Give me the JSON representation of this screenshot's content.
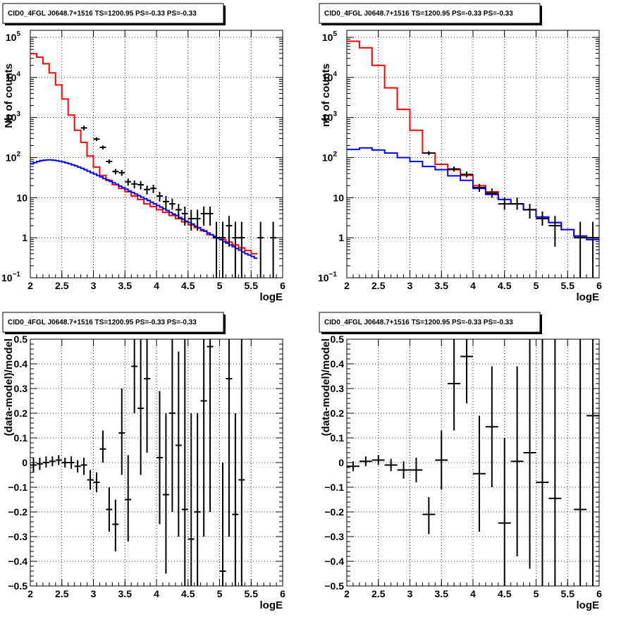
{
  "chart_data": [
    {
      "type": "line",
      "title": "CID0_4FGL J0648.7+1516 TS=1200.95 PS=-0.33 PS=-0.33",
      "xlabel": "logE",
      "ylabel": "Nb of counts",
      "xlim": [
        2,
        6
      ],
      "ylim": [
        0.1,
        150000
      ],
      "yscale": "log",
      "grid": true,
      "xticks": [
        "2",
        "2.5",
        "3",
        "3.5",
        "4",
        "4.5",
        "5",
        "5.5",
        "6"
      ],
      "yticks": [
        {
          "v": 0.1,
          "base": "10",
          "exp": "−1"
        },
        {
          "v": 1,
          "label": "1"
        },
        {
          "v": 10,
          "label": "10"
        },
        {
          "v": 100,
          "base": "10",
          "exp": "2"
        },
        {
          "v": 1000,
          "base": "10",
          "exp": "3"
        },
        {
          "v": 10000,
          "base": "10",
          "exp": "4"
        },
        {
          "v": 100000,
          "base": "10",
          "exp": "5"
        }
      ],
      "series": [
        {
          "color": "#ff0000",
          "kind": "step",
          "start": 2.0,
          "step": 0.1,
          "values": [
            39000,
            32000,
            22000,
            13000,
            6500,
            2900,
            1150,
            480,
            240,
            110,
            58,
            36,
            27,
            21,
            17,
            14,
            11,
            9,
            7,
            6,
            5,
            4.3,
            3.6,
            3.0,
            2.5,
            2.1,
            1.8,
            1.5,
            1.2,
            1.0,
            0.9,
            0.78,
            0.66,
            0.56,
            0.48,
            0.4
          ]
        },
        {
          "color": "#0000ff",
          "kind": "step",
          "start": 2.0,
          "step": 0.05,
          "values": [
            70,
            75,
            80,
            84,
            86,
            88,
            88,
            86,
            84,
            81,
            78,
            74,
            70,
            66,
            62,
            58,
            54,
            50,
            46,
            42,
            39,
            36,
            33,
            30,
            28,
            25.5,
            23.5,
            21.5,
            19.5,
            17.8,
            16.3,
            14.8,
            13.5,
            12.3,
            11.2,
            10.2,
            9.3,
            8.5,
            7.7,
            7.0,
            6.4,
            5.8,
            5.3,
            4.8,
            4.3,
            3.9,
            3.6,
            3.2,
            2.9,
            2.6,
            2.4,
            2.2,
            1.95,
            1.77,
            1.6,
            1.45,
            1.31,
            1.19,
            1.08,
            0.98,
            0.89,
            0.8,
            0.73,
            0.66,
            0.6,
            0.54,
            0.49,
            0.44,
            0.4,
            0.37,
            0.34,
            0.31
          ]
        }
      ],
      "points": {
        "halfwidth": 0.05,
        "x": [
          2.85,
          3.05,
          3.15,
          3.25,
          3.35,
          3.45,
          3.55,
          3.65,
          3.75,
          3.85,
          3.95,
          4.05,
          4.15,
          4.25,
          4.35,
          4.45,
          4.55,
          4.65,
          4.75,
          4.85,
          4.95,
          5.05,
          5.15,
          5.25,
          5.35,
          5.65,
          5.85
        ],
        "y": [
          550,
          290,
          180,
          80,
          45,
          42,
          25,
          22,
          21,
          16,
          17,
          11,
          8,
          7,
          5,
          4,
          3,
          3,
          4,
          4,
          1,
          1,
          2,
          1,
          1,
          1,
          1
        ],
        "ylo": [
          480,
          260,
          160,
          70,
          38,
          35,
          20,
          17,
          16,
          12,
          13,
          8,
          5,
          5,
          3,
          2,
          1.5,
          1.5,
          2,
          2,
          0.1,
          0.1,
          0.6,
          0.1,
          0.1,
          0.1,
          0.1
        ],
        "yhi": [
          620,
          320,
          200,
          90,
          52,
          49,
          30,
          27,
          26,
          20,
          21,
          14,
          11,
          9.5,
          7,
          6,
          5,
          5,
          6,
          6,
          2.5,
          2.5,
          3.5,
          2.5,
          2.5,
          2.5,
          2.5
        ]
      }
    },
    {
      "type": "line",
      "title": "CID0_4FGL J0648.7+1516 TS=1200.95 PS=-0.33 PS=-0.33",
      "xlabel": "logE",
      "ylabel": "nb of counts",
      "xlim": [
        2,
        6
      ],
      "ylim": [
        0.1,
        150000
      ],
      "yscale": "log",
      "grid": true,
      "xticks": [
        "2",
        "2.5",
        "3",
        "3.5",
        "4",
        "4.5",
        "5",
        "5.5",
        "6"
      ],
      "yticks": [
        {
          "v": 0.1,
          "base": "10",
          "exp": "−1"
        },
        {
          "v": 1,
          "label": "1"
        },
        {
          "v": 10,
          "label": "10"
        },
        {
          "v": 100,
          "base": "10",
          "exp": "2"
        },
        {
          "v": 1000,
          "base": "10",
          "exp": "3"
        },
        {
          "v": 10000,
          "base": "10",
          "exp": "4"
        },
        {
          "v": 100000,
          "base": "10",
          "exp": "5"
        }
      ],
      "series": [
        {
          "color": "#ff0000",
          "kind": "step",
          "start": 2.0,
          "step": 0.2,
          "values": [
            80000,
            55000,
            20000,
            5500,
            1600,
            480,
            130,
            68,
            50,
            36,
            20,
            14,
            9,
            7,
            5,
            3.3,
            2.4,
            1.6,
            1.1,
            0.9
          ]
        },
        {
          "color": "#0000ff",
          "kind": "step",
          "start": 2.0,
          "step": 0.2,
          "values": [
            160,
            175,
            155,
            130,
            100,
            80,
            60,
            50,
            35,
            27,
            17,
            12,
            9,
            7,
            5,
            3.3,
            2.4,
            1.6,
            1.1,
            0.9
          ]
        }
      ],
      "points": {
        "halfwidth": 0.1,
        "x": [
          3.3,
          3.7,
          3.9,
          4.1,
          4.3,
          4.5,
          4.7,
          4.9,
          5.1,
          5.3,
          5.7,
          5.9
        ],
        "y": [
          130,
          52,
          38,
          18,
          13,
          7,
          7,
          5,
          3,
          2,
          1,
          1
        ],
        "ylo": [
          115,
          45,
          32,
          14,
          10,
          5,
          5,
          3,
          2,
          0.6,
          0.1,
          0.1
        ],
        "yhi": [
          145,
          60,
          45,
          22,
          17,
          10,
          10,
          7,
          4.5,
          3.5,
          2.5,
          2.5
        ]
      }
    },
    {
      "type": "scatter",
      "title": "CID0_4FGL J0648.7+1516 TS=1200.95 PS=-0.33 PS=-0.33",
      "xlabel": "logE",
      "ylabel": "(data-model)/model",
      "xlim": [
        2,
        6
      ],
      "ylim": [
        -0.5,
        0.5
      ],
      "yscale": "linear",
      "grid": true,
      "xticks": [
        "2",
        "2.5",
        "3",
        "3.5",
        "4",
        "4.5",
        "5",
        "5.5",
        "6"
      ],
      "yticks": [
        {
          "v": -0.5,
          "label": "−0.5"
        },
        {
          "v": -0.4,
          "label": "−0.4"
        },
        {
          "v": -0.3,
          "label": "−0.3"
        },
        {
          "v": -0.2,
          "label": "−0.2"
        },
        {
          "v": -0.1,
          "label": "−0.1"
        },
        {
          "v": 0,
          "label": "0"
        },
        {
          "v": 0.1,
          "label": "0.1"
        },
        {
          "v": 0.2,
          "label": "0.2"
        },
        {
          "v": 0.3,
          "label": "0.3"
        },
        {
          "v": 0.4,
          "label": "0.4"
        },
        {
          "v": 0.5,
          "label": "0.5"
        }
      ],
      "series": [],
      "points": {
        "halfwidth": 0.05,
        "x": [
          2.05,
          2.15,
          2.25,
          2.35,
          2.45,
          2.55,
          2.65,
          2.75,
          2.85,
          2.95,
          3.05,
          3.15,
          3.25,
          3.35,
          3.45,
          3.55,
          3.65,
          3.75,
          3.85,
          4.05,
          4.15,
          4.25,
          4.35,
          4.45,
          4.55,
          4.65,
          4.75,
          4.85,
          5.05,
          5.15,
          5.25,
          5.35
        ],
        "y": [
          -0.01,
          -0.005,
          0.0,
          0.005,
          0.01,
          0.0,
          0.0,
          -0.015,
          -0.01,
          -0.07,
          -0.08,
          0.055,
          -0.19,
          -0.25,
          0.12,
          -0.15,
          0.39,
          0.22,
          0.34,
          0.02,
          -0.13,
          0.2,
          0.07,
          -0.19,
          -0.31,
          -0.2,
          0.25,
          0.47,
          -0.44,
          0.34,
          -0.21,
          -0.07
        ],
        "ylo": [
          -0.04,
          -0.03,
          -0.02,
          -0.015,
          -0.01,
          -0.02,
          -0.025,
          -0.04,
          -0.05,
          -0.11,
          -0.12,
          0.0,
          -0.28,
          -0.36,
          -0.05,
          -0.32,
          0.2,
          -0.05,
          0.04,
          -0.25,
          -0.45,
          -0.2,
          -0.3,
          -0.6,
          -0.6,
          -0.6,
          -0.3,
          -0.2,
          -0.6,
          -0.3,
          -0.6,
          -0.6
        ],
        "yhi": [
          0.02,
          0.02,
          0.025,
          0.025,
          0.03,
          0.02,
          0.025,
          0.01,
          0.02,
          -0.03,
          -0.04,
          0.13,
          -0.1,
          -0.15,
          0.3,
          0.03,
          0.6,
          0.5,
          0.6,
          0.29,
          0.2,
          0.6,
          0.45,
          0.6,
          0.2,
          0.2,
          0.6,
          0.6,
          0.0,
          0.6,
          0.2,
          0.6
        ]
      }
    },
    {
      "type": "scatter",
      "title": "CID0_4FGL J0648.7+1516 TS=1200.95 PS=-0.33 PS=-0.33",
      "xlabel": "logE",
      "ylabel": "(data-model)/model",
      "xlim": [
        2,
        6
      ],
      "ylim": [
        -0.5,
        0.5
      ],
      "yscale": "linear",
      "grid": true,
      "xticks": [
        "2",
        "2.5",
        "3",
        "3.5",
        "4",
        "4.5",
        "5",
        "5.5",
        "6"
      ],
      "yticks": [
        {
          "v": -0.5,
          "label": "−0.5"
        },
        {
          "v": -0.4,
          "label": "−0.4"
        },
        {
          "v": -0.3,
          "label": "−0.3"
        },
        {
          "v": -0.2,
          "label": "−0.2"
        },
        {
          "v": -0.1,
          "label": "−0.1"
        },
        {
          "v": 0,
          "label": "0"
        },
        {
          "v": 0.1,
          "label": "0.1"
        },
        {
          "v": 0.2,
          "label": "0.2"
        },
        {
          "v": 0.3,
          "label": "0.3"
        },
        {
          "v": 0.4,
          "label": "0.4"
        },
        {
          "v": 0.5,
          "label": "0.5"
        }
      ],
      "series": [],
      "points": {
        "halfwidth": 0.1,
        "x": [
          2.1,
          2.3,
          2.5,
          2.7,
          2.9,
          3.1,
          3.3,
          3.5,
          3.7,
          3.9,
          4.1,
          4.3,
          4.5,
          4.7,
          4.9,
          5.1,
          5.3,
          5.7,
          5.9
        ],
        "y": [
          -0.015,
          0.005,
          0.01,
          -0.01,
          -0.03,
          -0.03,
          -0.21,
          0.01,
          0.32,
          0.43,
          -0.045,
          0.145,
          -0.245,
          0.005,
          0.04,
          -0.08,
          -0.145,
          -0.19,
          0.19
        ],
        "ylo": [
          -0.035,
          -0.015,
          -0.01,
          -0.035,
          -0.065,
          -0.08,
          -0.29,
          -0.11,
          0.13,
          0.24,
          -0.28,
          -0.1,
          -0.6,
          -0.38,
          -0.43,
          -0.6,
          -0.6,
          -0.6,
          -0.6
        ],
        "yhi": [
          0.005,
          0.025,
          0.03,
          0.015,
          0.005,
          0.02,
          -0.14,
          0.13,
          0.6,
          0.6,
          0.19,
          0.39,
          0.1,
          0.39,
          0.6,
          0.6,
          0.6,
          0.6,
          0.6
        ]
      }
    }
  ]
}
